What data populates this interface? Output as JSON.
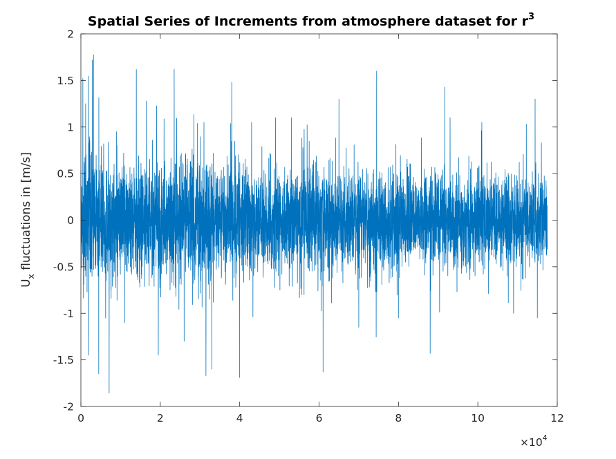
{
  "chart_data": {
    "type": "line",
    "title": "Spatial Series of Increments from atmosphere dataset for r",
    "title_superscript": "3",
    "xlabel": "",
    "ylabel_main": "U",
    "ylabel_sub": "x",
    "ylabel_rest": " fluctuations in [m/s]",
    "xlim": [
      0,
      12
    ],
    "ylim": [
      -2,
      2
    ],
    "x_multiplier_base": "×10",
    "x_multiplier_exp": "4",
    "x_ticks": [
      0,
      2,
      4,
      6,
      8,
      10,
      12
    ],
    "x_tick_labels": [
      "0",
      "2",
      "4",
      "6",
      "8",
      "10",
      "12"
    ],
    "y_ticks": [
      -2,
      -1.5,
      -1,
      -0.5,
      0,
      0.5,
      1,
      1.5,
      2
    ],
    "y_tick_labels": [
      "-2",
      "-1.5",
      "-1",
      "-0.5",
      "0",
      "0.5",
      "1",
      "1.5",
      "2"
    ],
    "grid": false,
    "box": true,
    "series": [
      {
        "color": "#0072BD",
        "x_start": 0,
        "x_end": 11.75,
        "samples": 117500,
        "typical_amplitude": 0.5,
        "envelope": [
          [
            0.0,
            0.6
          ],
          [
            0.3,
            0.7
          ],
          [
            0.6,
            0.55
          ],
          [
            1.0,
            0.5
          ],
          [
            1.5,
            0.52
          ],
          [
            2.0,
            0.58
          ],
          [
            2.5,
            0.55
          ],
          [
            3.0,
            0.6
          ],
          [
            3.5,
            0.55
          ],
          [
            4.0,
            0.5
          ],
          [
            5.0,
            0.48
          ],
          [
            6.0,
            0.5
          ],
          [
            7.0,
            0.47
          ],
          [
            7.5,
            0.52
          ],
          [
            8.0,
            0.48
          ],
          [
            9.0,
            0.45
          ],
          [
            10.0,
            0.47
          ],
          [
            10.5,
            0.44
          ],
          [
            11.0,
            0.42
          ],
          [
            11.75,
            0.44
          ]
        ],
        "peaks": [
          [
            0.05,
            1.52
          ],
          [
            0.12,
            1.25
          ],
          [
            0.2,
            -1.45
          ],
          [
            0.45,
            -1.65
          ],
          [
            0.9,
            0.95
          ],
          [
            1.1,
            -1.1
          ],
          [
            1.65,
            1.28
          ],
          [
            1.95,
            -1.45
          ],
          [
            2.35,
            1.62
          ],
          [
            2.6,
            -1.3
          ],
          [
            3.1,
            1.05
          ],
          [
            3.15,
            -1.67
          ],
          [
            3.3,
            -1.6
          ],
          [
            3.8,
            1.48
          ],
          [
            4.0,
            -1.69
          ],
          [
            4.3,
            1.05
          ],
          [
            4.9,
            1.1
          ],
          [
            5.3,
            1.1
          ],
          [
            6.1,
            -1.63
          ],
          [
            6.5,
            1.3
          ],
          [
            7.0,
            -1.15
          ],
          [
            7.45,
            1.6
          ],
          [
            8.0,
            -1.05
          ],
          [
            8.8,
            -1.43
          ],
          [
            9.3,
            1.1
          ],
          [
            10.1,
            1.05
          ],
          [
            10.9,
            -1.0
          ],
          [
            11.6,
            0.83
          ],
          [
            11.5,
            -1.05
          ]
        ]
      }
    ]
  }
}
